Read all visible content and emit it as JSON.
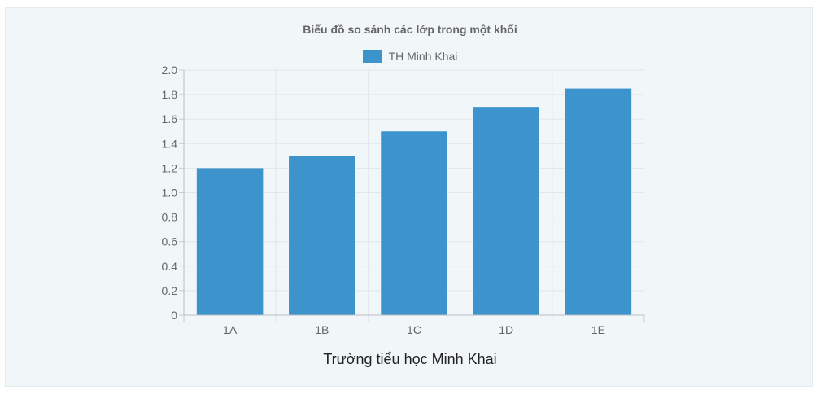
{
  "chart_data": {
    "type": "bar",
    "title": "Biểu đồ so sánh các lớp trong một khối",
    "categories": [
      "1A",
      "1B",
      "1C",
      "1D",
      "1E"
    ],
    "series": [
      {
        "name": "TH Minh Khai",
        "values": [
          1.2,
          1.3,
          1.5,
          1.7,
          1.85
        ],
        "color": "#3d93cc"
      }
    ],
    "xlabel": "Trường tiểu học Minh Khai",
    "ylabel": "",
    "ylim": [
      0,
      2.0
    ],
    "yticks": [
      "0",
      "0.2",
      "0.4",
      "0.6",
      "0.8",
      "1.0",
      "1.2",
      "1.4",
      "1.6",
      "1.8",
      "2.0"
    ],
    "grid": true,
    "legend_position": "top-center"
  }
}
